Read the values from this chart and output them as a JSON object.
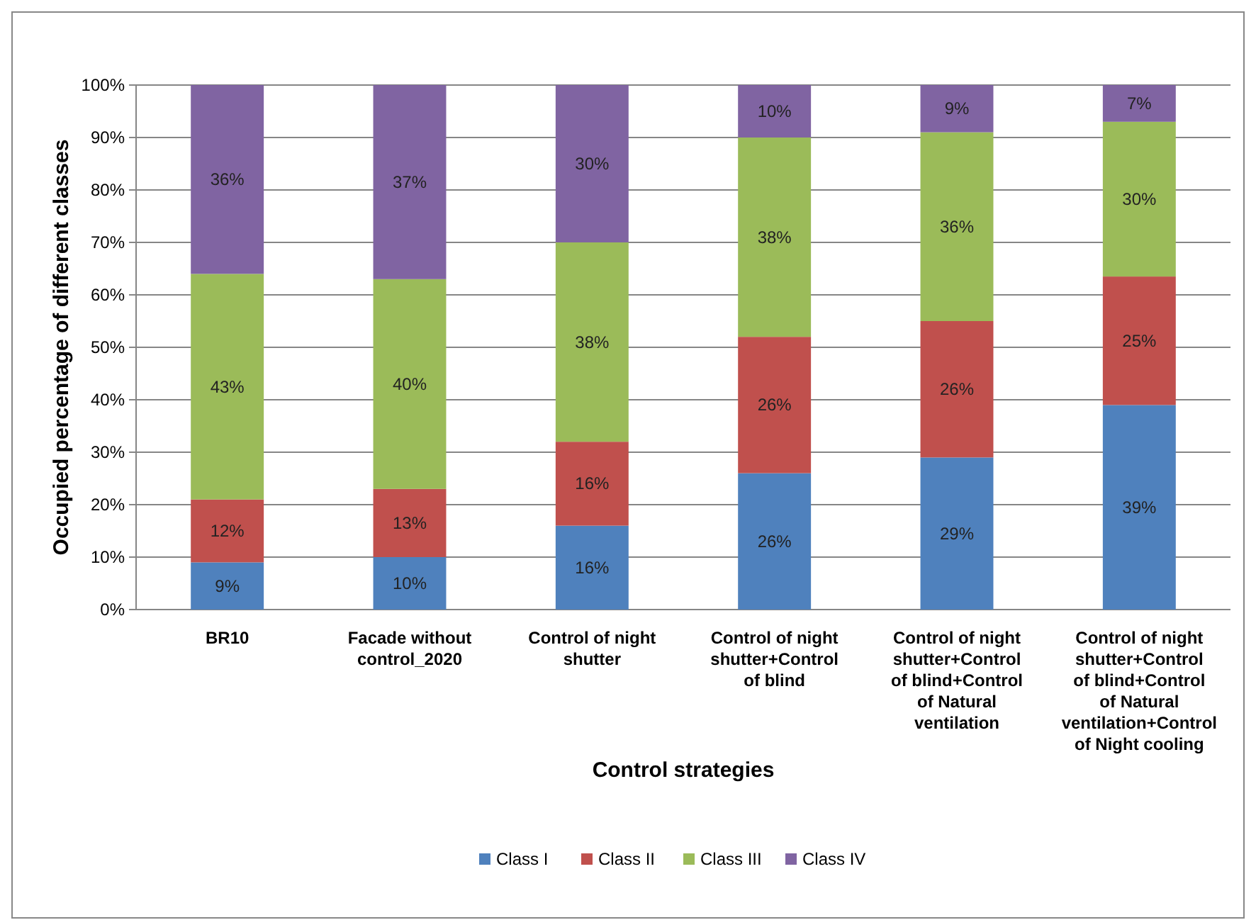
{
  "chart_data": {
    "type": "bar",
    "stacked": true,
    "xlabel": "Control strategies",
    "ylabel": "Occupied percentage of different classes",
    "categories": [
      "BR10",
      "Facade without control_2020",
      "Control of night shutter",
      "Control of night shutter+Control of blind",
      "Control of night shutter+Control of blind+Control of Natural ventilation",
      "Control of night shutter+Control of blind+Control of Natural ventilation+Control of Night cooling"
    ],
    "series": [
      {
        "name": "Class I",
        "color": "#4f81bd",
        "values": [
          9,
          10,
          16,
          26,
          29,
          39
        ],
        "value_labels": [
          "9%",
          "10%",
          "16%",
          "26%",
          "29%",
          "39%"
        ]
      },
      {
        "name": "Class II",
        "color": "#c0504d",
        "values": [
          12,
          13,
          16,
          26,
          26,
          24.5
        ],
        "value_labels": [
          "12%",
          "13%",
          "16%",
          "26%",
          "26%",
          "25%"
        ]
      },
      {
        "name": "Class III",
        "color": "#9bbb59",
        "values": [
          43,
          40,
          38,
          38,
          36,
          29.5
        ],
        "value_labels": [
          "43%",
          "40%",
          "38%",
          "38%",
          "36%",
          "30%"
        ]
      },
      {
        "name": "Class IV",
        "color": "#8064a2",
        "values": [
          36,
          37,
          30,
          10,
          9,
          7
        ],
        "value_labels": [
          "36%",
          "37%",
          "30%",
          "10%",
          "9%",
          "7%"
        ]
      }
    ],
    "ylim": [
      0,
      100
    ],
    "yticks": [
      {
        "value": 0,
        "label": "0%"
      },
      {
        "value": 10,
        "label": "10%"
      },
      {
        "value": 20,
        "label": "20%"
      },
      {
        "value": 30,
        "label": "30%"
      },
      {
        "value": 40,
        "label": "40%"
      },
      {
        "value": 50,
        "label": "50%"
      },
      {
        "value": 60,
        "label": "60%"
      },
      {
        "value": 70,
        "label": "70%"
      },
      {
        "value": 80,
        "label": "80%"
      },
      {
        "value": 90,
        "label": "90%"
      },
      {
        "value": 100,
        "label": "100%"
      }
    ],
    "grid": "y",
    "legend": "bottom"
  }
}
